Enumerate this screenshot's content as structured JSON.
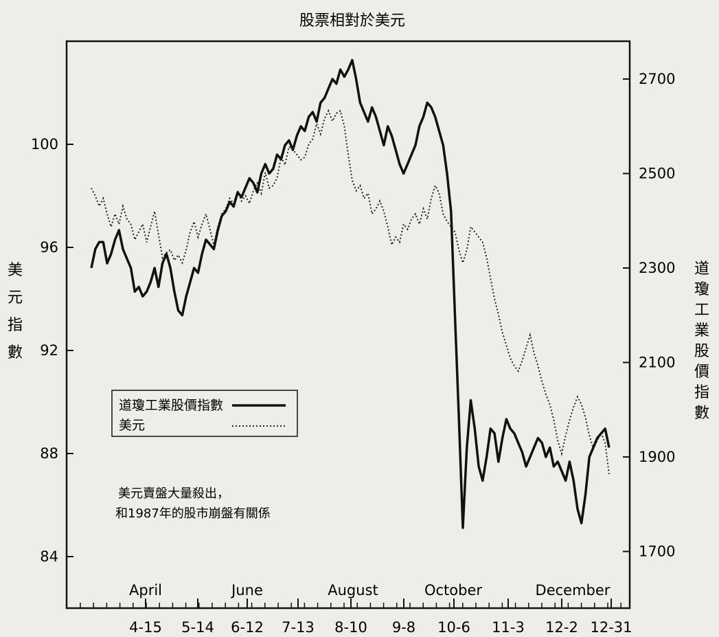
{
  "chart_data": {
    "type": "line",
    "title": "股票相對於美元",
    "ylabel_left": "美元指數",
    "ylabel_right": "道瓊工業股價指數",
    "ylim_left": [
      82,
      104
    ],
    "yticks_left": [
      "100",
      "96",
      "92",
      "88",
      "84"
    ],
    "ylim_right": [
      1580,
      2780
    ],
    "yticks_right": [
      "2700",
      "2500",
      "2300",
      "2100",
      "1900",
      "1700"
    ],
    "month_labels": [
      "April",
      "June",
      "August",
      "October",
      "December"
    ],
    "x_ticks": [
      "4-15",
      "5-14",
      "6-12",
      "7-13",
      "8-10",
      "9-8",
      "10-6",
      "11-3",
      "12-2",
      "12-31"
    ],
    "legend": {
      "position": "lower-left",
      "entries": [
        "道瓊工業股價指數",
        "美元"
      ]
    },
    "annotation": [
      "美元賣盤大量殺出，",
      "和1987年的股市崩盤有關係"
    ],
    "series": [
      {
        "name": "道瓊工業股價指數",
        "axis": "right",
        "style": "solid",
        "x": [
          0,
          2,
          4,
          6,
          8,
          10,
          12,
          14,
          16,
          18,
          20,
          22,
          24,
          26,
          28,
          30,
          32,
          34,
          36,
          38,
          40,
          42,
          44,
          46,
          48,
          50,
          52,
          54,
          56,
          58,
          60,
          62,
          64,
          66,
          68,
          70,
          72,
          74,
          76,
          78,
          80,
          82,
          84,
          86,
          88,
          90,
          92,
          94,
          96,
          98,
          100,
          102,
          104,
          106,
          108,
          110,
          112,
          114,
          116,
          118,
          120,
          122,
          124,
          126,
          128,
          130,
          132,
          134,
          136,
          138,
          140,
          142,
          144,
          146,
          148,
          150,
          152,
          154,
          156,
          158,
          160,
          162,
          164,
          166,
          168,
          170,
          172,
          174,
          176,
          178,
          180,
          182,
          184,
          186,
          188,
          190,
          192,
          194,
          196,
          198,
          200,
          202,
          204,
          206,
          208,
          210,
          212,
          214,
          216,
          218,
          220,
          222,
          224,
          226,
          228,
          230,
          232,
          234,
          236,
          238,
          240,
          242,
          244,
          246,
          248,
          250,
          252,
          254,
          256,
          258,
          260,
          262
        ],
        "values": [
          2300,
          2340,
          2355,
          2355,
          2310,
          2330,
          2360,
          2380,
          2340,
          2320,
          2300,
          2250,
          2260,
          2240,
          2250,
          2270,
          2300,
          2260,
          2310,
          2330,
          2300,
          2250,
          2210,
          2200,
          2240,
          2270,
          2300,
          2290,
          2330,
          2360,
          2350,
          2340,
          2380,
          2410,
          2420,
          2440,
          2430,
          2460,
          2450,
          2470,
          2490,
          2480,
          2460,
          2500,
          2520,
          2500,
          2510,
          2540,
          2530,
          2560,
          2570,
          2550,
          2580,
          2600,
          2590,
          2620,
          2630,
          2610,
          2650,
          2660,
          2680,
          2700,
          2690,
          2720,
          2705,
          2720,
          2740,
          2700,
          2650,
          2630,
          2610,
          2640,
          2620,
          2590,
          2560,
          2600,
          2580,
          2550,
          2520,
          2500,
          2520,
          2540,
          2560,
          2600,
          2620,
          2650,
          2640,
          2620,
          2590,
          2560,
          2500,
          2420,
          2200,
          1980,
          1750,
          1920,
          2020,
          1960,
          1880,
          1850,
          1900,
          1960,
          1950,
          1890,
          1940,
          1980,
          1960,
          1950,
          1930,
          1910,
          1880,
          1900,
          1920,
          1940,
          1930,
          1900,
          1920,
          1880,
          1890,
          1870,
          1850,
          1890,
          1850,
          1790,
          1760,
          1820,
          1900,
          1920,
          1940,
          1950,
          1960,
          1920
        ]
      },
      {
        "name": "美元",
        "axis": "left",
        "style": "dotted",
        "x": [
          0,
          2,
          4,
          6,
          8,
          10,
          12,
          14,
          16,
          18,
          20,
          22,
          24,
          26,
          28,
          30,
          32,
          34,
          36,
          38,
          40,
          42,
          44,
          46,
          48,
          50,
          52,
          54,
          56,
          58,
          60,
          62,
          64,
          66,
          68,
          70,
          72,
          74,
          76,
          78,
          80,
          82,
          84,
          86,
          88,
          90,
          92,
          94,
          96,
          98,
          100,
          102,
          104,
          106,
          108,
          110,
          112,
          114,
          116,
          118,
          120,
          122,
          124,
          126,
          128,
          130,
          132,
          134,
          136,
          138,
          140,
          142,
          144,
          146,
          148,
          150,
          152,
          154,
          156,
          158,
          160,
          162,
          164,
          166,
          168,
          170,
          172,
          174,
          176,
          178,
          180,
          182,
          184,
          186,
          188,
          190,
          192,
          194,
          196,
          198,
          200,
          202,
          204,
          206,
          208,
          210,
          212,
          214,
          216,
          218,
          220,
          222,
          224,
          226,
          228,
          230,
          232,
          234,
          236,
          238,
          240,
          242,
          244,
          246,
          248,
          250,
          252,
          254,
          256,
          258,
          260,
          262
        ],
        "values": [
          98.3,
          98.0,
          97.6,
          97.9,
          97.3,
          96.8,
          97.3,
          96.9,
          97.6,
          97.1,
          96.9,
          96.3,
          96.6,
          96.9,
          96.2,
          96.8,
          97.4,
          96.5,
          95.6,
          95.8,
          95.9,
          95.5,
          95.7,
          95.4,
          95.9,
          96.6,
          97.0,
          96.4,
          96.9,
          97.3,
          96.7,
          96.1,
          96.8,
          97.3,
          97.5,
          97.9,
          97.7,
          98.2,
          97.8,
          98.0,
          97.7,
          98.2,
          98.5,
          98.1,
          98.9,
          98.3,
          98.4,
          98.7,
          99.5,
          99.2,
          99.9,
          99.8,
          99.6,
          99.4,
          99.5,
          100.0,
          100.2,
          100.8,
          100.4,
          101.0,
          101.3,
          100.9,
          101.2,
          101.3,
          100.7,
          99.6,
          98.6,
          98.2,
          98.4,
          97.9,
          98.1,
          97.3,
          97.5,
          97.8,
          97.4,
          96.8,
          96.1,
          96.4,
          96.2,
          96.9,
          96.7,
          97.1,
          97.3,
          96.9,
          97.5,
          97.1,
          97.9,
          98.4,
          98.1,
          97.3,
          97.0,
          96.8,
          96.6,
          95.9,
          95.4,
          95.9,
          96.8,
          96.6,
          96.4,
          96.2,
          95.6,
          94.8,
          94.0,
          93.4,
          92.7,
          92.2,
          91.7,
          91.4,
          91.2,
          91.6,
          92.1,
          92.6,
          91.9,
          91.4,
          90.8,
          90.3,
          89.9,
          89.3,
          88.5,
          88.0,
          88.7,
          89.3,
          89.8,
          90.2,
          89.9,
          89.4,
          88.7,
          88.2,
          88.5,
          88.8,
          88.4,
          87.2
        ]
      }
    ]
  }
}
